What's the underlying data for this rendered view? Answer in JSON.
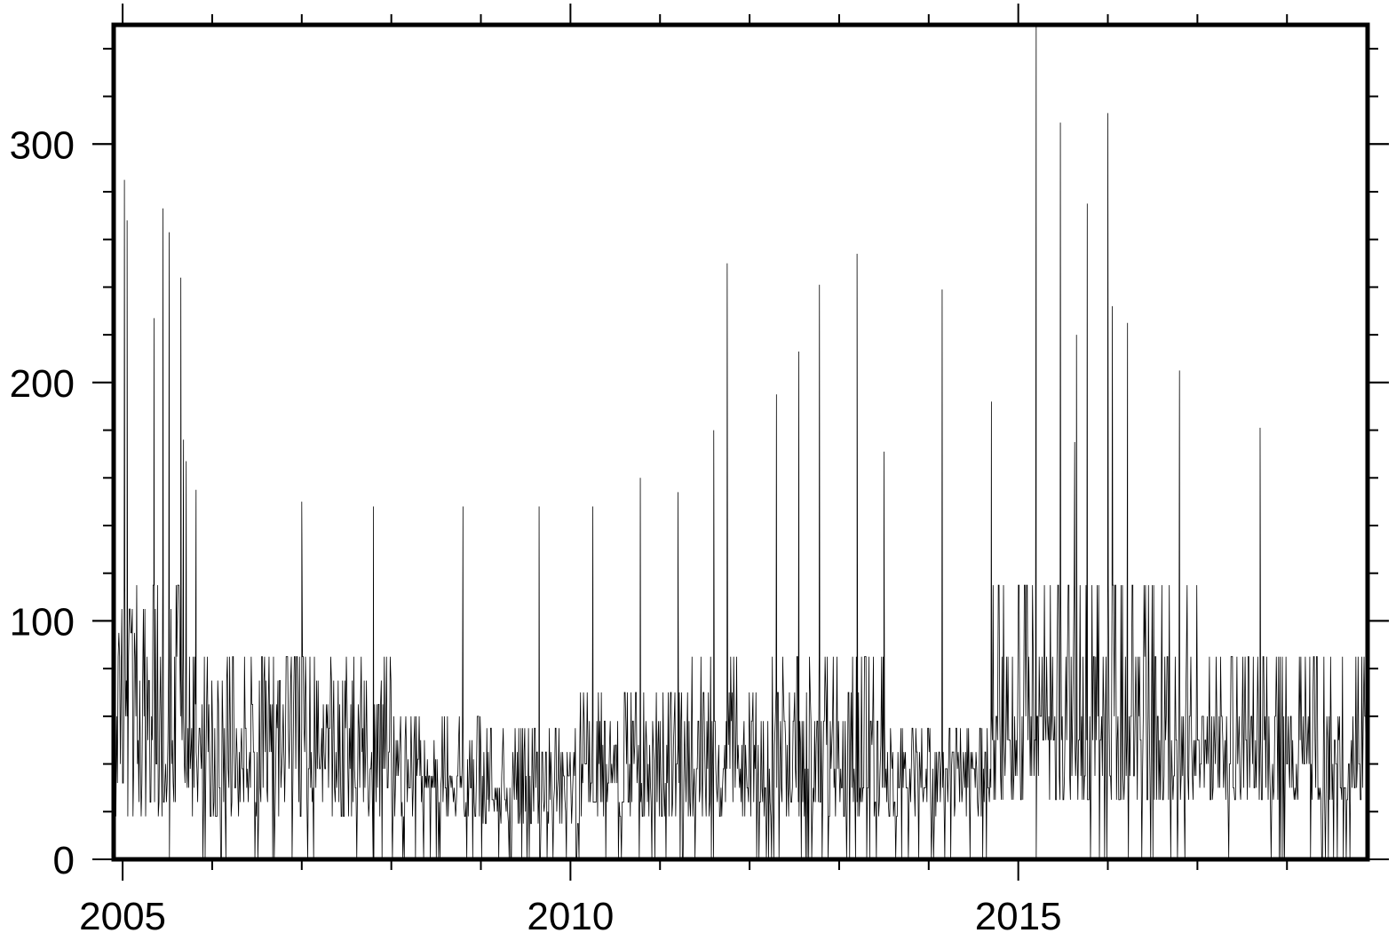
{
  "chart_data": {
    "type": "line",
    "title": "",
    "xlabel": "",
    "ylabel": "",
    "xlim": [
      2004.9,
      2018.9
    ],
    "ylim": [
      0,
      350
    ],
    "x_ticks": [
      {
        "value": 2005,
        "label": "2005"
      },
      {
        "value": 2010,
        "label": "2010"
      },
      {
        "value": 2015,
        "label": "2015"
      }
    ],
    "y_ticks": [
      {
        "value": 0,
        "label": "0"
      },
      {
        "value": 100,
        "label": "100"
      },
      {
        "value": 200,
        "label": "200"
      },
      {
        "value": 300,
        "label": "300"
      }
    ],
    "x_minor_step": 1,
    "y_minor_step": 20,
    "grid": false,
    "line_color": "#000000",
    "series": [
      {
        "sample_interval_years": 0.0083,
        "segments": [
          {
            "x_start": 2004.9,
            "x_end": 2005.7,
            "levels": [
              18,
              24,
              32,
              40,
              50,
              60,
              75,
              85,
              95,
              105,
              115
            ],
            "zero_prob": 0.03
          },
          {
            "x_start": 2005.7,
            "x_end": 2008.0,
            "levels": [
              18,
              24,
              30,
              38,
              45,
              55,
              65,
              75,
              85
            ],
            "zero_prob": 0.05
          },
          {
            "x_start": 2008.0,
            "x_end": 2009.0,
            "levels": [
              18,
              24,
              30,
              35,
              42,
              50,
              60
            ],
            "zero_prob": 0.06
          },
          {
            "x_start": 2009.0,
            "x_end": 2010.1,
            "levels": [
              15,
              20,
              25,
              30,
              35,
              45,
              55
            ],
            "zero_prob": 0.12
          },
          {
            "x_start": 2010.1,
            "x_end": 2011.3,
            "levels": [
              18,
              24,
              32,
              40,
              48,
              58,
              70
            ],
            "zero_prob": 0.06
          },
          {
            "x_start": 2011.3,
            "x_end": 2013.5,
            "levels": [
              18,
              24,
              30,
              38,
              48,
              58,
              70,
              85
            ],
            "zero_prob": 0.07
          },
          {
            "x_start": 2013.5,
            "x_end": 2014.7,
            "levels": [
              18,
              24,
              30,
              38,
              45,
              55
            ],
            "zero_prob": 0.07
          },
          {
            "x_start": 2014.7,
            "x_end": 2017.0,
            "levels": [
              25,
              35,
              50,
              60,
              85,
              115
            ],
            "zero_prob": 0.04
          },
          {
            "x_start": 2017.0,
            "x_end": 2018.9,
            "levels": [
              25,
              30,
              40,
              50,
              60,
              85
            ],
            "zero_prob": 0.08
          }
        ],
        "peaks": [
          {
            "x": 2005.02,
            "y": 285
          },
          {
            "x": 2005.05,
            "y": 268
          },
          {
            "x": 2005.35,
            "y": 227
          },
          {
            "x": 2005.45,
            "y": 273
          },
          {
            "x": 2005.52,
            "y": 263
          },
          {
            "x": 2005.65,
            "y": 244
          },
          {
            "x": 2005.68,
            "y": 176
          },
          {
            "x": 2005.71,
            "y": 167
          },
          {
            "x": 2005.82,
            "y": 155
          },
          {
            "x": 2007.0,
            "y": 150
          },
          {
            "x": 2007.8,
            "y": 148
          },
          {
            "x": 2008.8,
            "y": 148
          },
          {
            "x": 2009.65,
            "y": 148
          },
          {
            "x": 2010.25,
            "y": 148
          },
          {
            "x": 2010.78,
            "y": 160
          },
          {
            "x": 2011.2,
            "y": 154
          },
          {
            "x": 2011.6,
            "y": 180
          },
          {
            "x": 2011.75,
            "y": 250
          },
          {
            "x": 2012.3,
            "y": 195
          },
          {
            "x": 2012.55,
            "y": 213
          },
          {
            "x": 2012.78,
            "y": 241
          },
          {
            "x": 2013.2,
            "y": 254
          },
          {
            "x": 2013.5,
            "y": 171
          },
          {
            "x": 2014.15,
            "y": 239
          },
          {
            "x": 2014.7,
            "y": 192
          },
          {
            "x": 2015.2,
            "y": 352
          },
          {
            "x": 2015.47,
            "y": 309
          },
          {
            "x": 2015.63,
            "y": 175
          },
          {
            "x": 2015.65,
            "y": 220
          },
          {
            "x": 2015.77,
            "y": 275
          },
          {
            "x": 2016.0,
            "y": 313
          },
          {
            "x": 2016.05,
            "y": 232
          },
          {
            "x": 2016.22,
            "y": 225
          },
          {
            "x": 2016.8,
            "y": 205
          },
          {
            "x": 2017.7,
            "y": 181
          }
        ]
      }
    ]
  }
}
